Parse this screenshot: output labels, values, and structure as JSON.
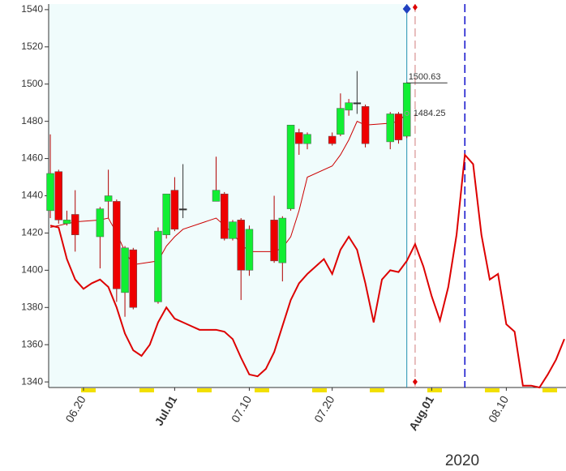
{
  "chart_data": {
    "type": "candlestick",
    "ylim": [
      1337,
      1543
    ],
    "yticks": [
      1340,
      1360,
      1380,
      1400,
      1420,
      1440,
      1460,
      1480,
      1500,
      1520,
      1540
    ],
    "xlim": [
      -0.2,
      62.2
    ],
    "xticks": [
      {
        "value": 4,
        "label": "06.20"
      },
      {
        "value": 15,
        "label": "Jul.01"
      },
      {
        "value": 24,
        "label": "07.10"
      },
      {
        "value": 34,
        "label": "07.20"
      },
      {
        "value": 46,
        "label": "Aug.01"
      },
      {
        "value": 55,
        "label": "08.10"
      }
    ],
    "month_tick_color": "#8b0000",
    "day_tick_color": "#666666",
    "year_label": "2020",
    "year_color": "#1010cc",
    "background": "#f0fcfc",
    "up_color": "#11ee33",
    "down_color": "#ee0000",
    "x": [
      0,
      1,
      2,
      3,
      6,
      7,
      8,
      9,
      10,
      13,
      14,
      15,
      16,
      20,
      21,
      22,
      23,
      24,
      27,
      28,
      29,
      30,
      31,
      34,
      35,
      36,
      37,
      38,
      41,
      42,
      43
    ],
    "open": [
      1432,
      1453,
      1425,
      1430,
      1418,
      1437,
      1437,
      1388,
      1411,
      1383,
      1419,
      1443,
      1433,
      1437,
      1441,
      1417,
      1427,
      1400,
      1427,
      1404,
      1433,
      1474,
      1468,
      1472,
      1473,
      1486,
      1490,
      1488,
      1469,
      1484,
      1472
    ],
    "high": [
      1473,
      1454,
      1432,
      1443,
      1434,
      1454,
      1438,
      1413,
      1412,
      1423,
      1441,
      1450,
      1457,
      1461,
      1442,
      1427,
      1428,
      1424,
      1440,
      1429,
      1478,
      1476,
      1474,
      1474,
      1495,
      1492,
      1507,
      1489,
      1485,
      1485,
      1501
    ],
    "low": [
      1428,
      1425,
      1424,
      1410,
      1401,
      1428,
      1383,
      1375,
      1379,
      1382,
      1417,
      1421,
      1428,
      1437,
      1416,
      1416,
      1384,
      1397,
      1404,
      1394,
      1432,
      1462,
      1465,
      1467,
      1472,
      1483,
      1484,
      1466,
      1465,
      1468,
      1471
    ],
    "close": [
      1452,
      1427,
      1427,
      1419,
      1433,
      1440,
      1390,
      1412,
      1380,
      1421,
      1441,
      1422,
      1433,
      1443,
      1417,
      1426,
      1400,
      1422,
      1405,
      1428,
      1478,
      1468,
      1473,
      1468,
      1487,
      1490,
      1490,
      1468,
      1484,
      1470,
      1500.63
    ],
    "lines": [
      {
        "color": "#cc0000",
        "width": 1,
        "x": [
          0,
          1,
          2,
          3,
          6,
          7,
          8,
          9,
          10,
          13,
          14,
          15,
          16,
          20,
          21,
          22,
          23,
          24,
          27,
          28,
          29,
          30,
          31,
          34,
          35,
          36,
          37,
          38,
          41,
          42,
          43
        ],
        "values": [
          1423,
          1424,
          1425,
          1426,
          1427,
          1428,
          1420,
          1410,
          1403,
          1405,
          1413,
          1418,
          1422,
          1428,
          1424,
          1420,
          1414,
          1410,
          1410,
          1412,
          1418,
          1432,
          1450,
          1456,
          1462,
          1470,
          1480,
          1478,
          1479,
          1480,
          1484.25
        ]
      },
      {
        "color": "#dd0000",
        "width": 2,
        "x": [
          0,
          1,
          2,
          3,
          4,
          5,
          6,
          7,
          8,
          9,
          10,
          11,
          12,
          13,
          14,
          15,
          16,
          17,
          18,
          19,
          20,
          21,
          22,
          23,
          24,
          25,
          26,
          27,
          28,
          29,
          30,
          31,
          32,
          33,
          34,
          35,
          36,
          37,
          38,
          39,
          40,
          41,
          42,
          43,
          44,
          45,
          46,
          47,
          48,
          49,
          50,
          51,
          52,
          53,
          54,
          55,
          56,
          57,
          58,
          59,
          60,
          61,
          62
        ],
        "values": [
          1424,
          1423,
          1406,
          1395,
          1390,
          1393,
          1395,
          1391,
          1380,
          1366,
          1357,
          1354,
          1360,
          1372,
          1380,
          1374,
          1372,
          1370,
          1368,
          1368,
          1368,
          1367,
          1363,
          1353,
          1344,
          1343,
          1347,
          1356,
          1370,
          1384,
          1393,
          1398,
          1402,
          1406,
          1398,
          1411,
          1418,
          1411,
          1393,
          1372,
          1395,
          1400,
          1399,
          1405,
          1414,
          1402,
          1386,
          1373,
          1391,
          1419,
          1462,
          1457,
          1419,
          1395,
          1398,
          1371,
          1367,
          1338,
          1338,
          1337,
          1344,
          1352,
          1363
        ]
      }
    ],
    "vlines": [
      {
        "x": 43,
        "color": "#2090b0",
        "dash": false
      },
      {
        "x": 44,
        "color": "#e0a8a8",
        "dash": true
      },
      {
        "x": 50,
        "color": "#1010cc",
        "dash": true
      }
    ]
  }
}
